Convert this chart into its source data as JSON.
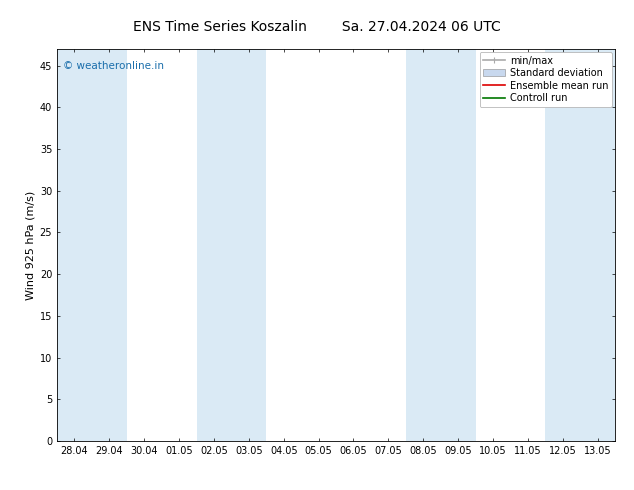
{
  "title_left": "ENS Time Series Koszalin",
  "title_right": "Sa. 27.04.2024 06 UTC",
  "ylabel": "Wind 925 hPa (m/s)",
  "ylim": [
    0,
    47
  ],
  "yticks": [
    0,
    5,
    10,
    15,
    20,
    25,
    30,
    35,
    40,
    45
  ],
  "x_labels": [
    "28.04",
    "29.04",
    "30.04",
    "01.05",
    "02.05",
    "03.05",
    "04.05",
    "05.05",
    "06.05",
    "07.05",
    "08.05",
    "09.05",
    "10.05",
    "11.05",
    "12.05",
    "13.05"
  ],
  "shaded_ranges": [
    [
      0,
      1
    ],
    [
      4,
      5
    ],
    [
      10,
      11
    ],
    [
      14,
      15
    ]
  ],
  "shaded_color": "#daeaf5",
  "bg_color": "#ffffff",
  "watermark_text": "© weatheronline.in",
  "watermark_color": "#1a6eab",
  "legend_items": [
    {
      "label": "min/max",
      "color": "#aaaaaa",
      "lw": 1.2
    },
    {
      "label": "Standard deviation",
      "color": "#c8d8ee",
      "lw": 5
    },
    {
      "label": "Ensemble mean run",
      "color": "#dd0000",
      "lw": 1.2
    },
    {
      "label": "Controll run",
      "color": "#007700",
      "lw": 1.2
    }
  ],
  "title_fontsize": 10,
  "ylabel_fontsize": 8,
  "tick_fontsize": 7,
  "legend_fontsize": 7
}
